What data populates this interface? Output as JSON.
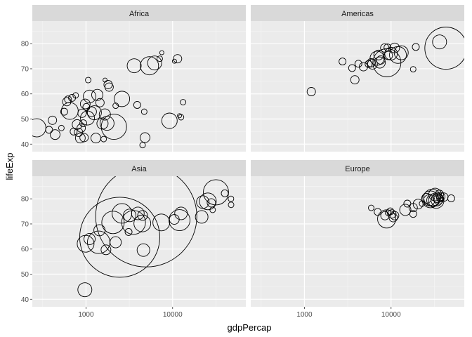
{
  "chart_data": {
    "type": "scatter",
    "subtype": "bubble-facets",
    "title": "",
    "xlabel": "gdpPercap",
    "ylabel": "lifeExp",
    "x_scale": "log10",
    "xlim": [
      240,
      70000
    ],
    "ylim": [
      37,
      89
    ],
    "x_ticks": [
      1000,
      10000
    ],
    "x_tick_labels": [
      "1000",
      "10000"
    ],
    "y_ticks": [
      40,
      50,
      60,
      70,
      80
    ],
    "y_tick_labels": [
      "40",
      "50",
      "60",
      "70",
      "80"
    ],
    "grid": true,
    "legend": "none",
    "colors": {
      "panel_background": "#ebebeb",
      "strip_background": "#d9d9d9",
      "grid_major": "#ffffff",
      "grid_minor": "#f5f5f5",
      "bubble_stroke": "#000000"
    },
    "panels": [
      {
        "name": "Africa",
        "points": [
          {
            "x": 270,
            "y": 46.5,
            "r": 13
          },
          {
            "x": 375,
            "y": 45.7,
            "r": 5
          },
          {
            "x": 410,
            "y": 49.5,
            "r": 6
          },
          {
            "x": 440,
            "y": 43.8,
            "r": 7
          },
          {
            "x": 520,
            "y": 46.4,
            "r": 4
          },
          {
            "x": 560,
            "y": 52.9,
            "r": 5
          },
          {
            "x": 600,
            "y": 56.9,
            "r": 6
          },
          {
            "x": 620,
            "y": 57.8,
            "r": 5
          },
          {
            "x": 650,
            "y": 53.2,
            "r": 12
          },
          {
            "x": 690,
            "y": 58.4,
            "r": 5
          },
          {
            "x": 720,
            "y": 45.0,
            "r": 5
          },
          {
            "x": 760,
            "y": 59.4,
            "r": 4
          },
          {
            "x": 790,
            "y": 47.8,
            "r": 7
          },
          {
            "x": 820,
            "y": 44.7,
            "r": 6
          },
          {
            "x": 860,
            "y": 42.4,
            "r": 7
          },
          {
            "x": 880,
            "y": 46.4,
            "r": 6
          },
          {
            "x": 900,
            "y": 52.3,
            "r": 6
          },
          {
            "x": 930,
            "y": 48.3,
            "r": 5
          },
          {
            "x": 950,
            "y": 42.6,
            "r": 6
          },
          {
            "x": 980,
            "y": 56.0,
            "r": 7
          },
          {
            "x": 1010,
            "y": 54.8,
            "r": 5
          },
          {
            "x": 1040,
            "y": 50.4,
            "r": 10
          },
          {
            "x": 1060,
            "y": 65.5,
            "r": 4
          },
          {
            "x": 1100,
            "y": 59.0,
            "r": 9
          },
          {
            "x": 1160,
            "y": 52.9,
            "r": 7
          },
          {
            "x": 1250,
            "y": 52.5,
            "r": 10
          },
          {
            "x": 1300,
            "y": 42.4,
            "r": 7
          },
          {
            "x": 1350,
            "y": 59.6,
            "r": 8
          },
          {
            "x": 1450,
            "y": 56.5,
            "r": 6
          },
          {
            "x": 1550,
            "y": 48.2,
            "r": 8
          },
          {
            "x": 1600,
            "y": 42.0,
            "r": 4
          },
          {
            "x": 1650,
            "y": 51.8,
            "r": 8
          },
          {
            "x": 1660,
            "y": 65.5,
            "r": 3
          },
          {
            "x": 1750,
            "y": 48.3,
            "r": 10
          },
          {
            "x": 1800,
            "y": 63.7,
            "r": 6
          },
          {
            "x": 1850,
            "y": 62.7,
            "r": 6
          },
          {
            "x": 2100,
            "y": 46.9,
            "r": 18
          },
          {
            "x": 2200,
            "y": 55.3,
            "r": 4
          },
          {
            "x": 2600,
            "y": 58.0,
            "r": 11
          },
          {
            "x": 3600,
            "y": 71.2,
            "r": 10
          },
          {
            "x": 3900,
            "y": 55.6,
            "r": 5
          },
          {
            "x": 4500,
            "y": 39.6,
            "r": 4
          },
          {
            "x": 4700,
            "y": 52.9,
            "r": 4
          },
          {
            "x": 4800,
            "y": 42.6,
            "r": 7
          },
          {
            "x": 5400,
            "y": 71.2,
            "r": 13
          },
          {
            "x": 6200,
            "y": 72.3,
            "r": 10
          },
          {
            "x": 7100,
            "y": 74.0,
            "r": 4
          },
          {
            "x": 7500,
            "y": 76.4,
            "r": 3
          },
          {
            "x": 9200,
            "y": 49.3,
            "r": 11
          },
          {
            "x": 10500,
            "y": 73.0,
            "r": 3
          },
          {
            "x": 11400,
            "y": 74.0,
            "r": 6
          },
          {
            "x": 12000,
            "y": 51.3,
            "r": 3
          },
          {
            "x": 12500,
            "y": 50.7,
            "r": 4
          },
          {
            "x": 13200,
            "y": 56.7,
            "r": 4
          }
        ]
      },
      {
        "name": "Americas",
        "points": [
          {
            "x": 1200,
            "y": 60.9,
            "r": 6
          },
          {
            "x": 2750,
            "y": 72.9,
            "r": 5
          },
          {
            "x": 3550,
            "y": 70.3,
            "r": 5
          },
          {
            "x": 3820,
            "y": 65.6,
            "r": 6
          },
          {
            "x": 4200,
            "y": 72.0,
            "r": 5
          },
          {
            "x": 4800,
            "y": 70.8,
            "r": 6
          },
          {
            "x": 5500,
            "y": 71.9,
            "r": 5
          },
          {
            "x": 5900,
            "y": 72.4,
            "r": 6
          },
          {
            "x": 6100,
            "y": 71.8,
            "r": 7
          },
          {
            "x": 6900,
            "y": 74.2,
            "r": 10
          },
          {
            "x": 7200,
            "y": 75.5,
            "r": 7
          },
          {
            "x": 7400,
            "y": 72.5,
            "r": 8
          },
          {
            "x": 7600,
            "y": 73.5,
            "r": 6
          },
          {
            "x": 8450,
            "y": 78.3,
            "r": 6
          },
          {
            "x": 8950,
            "y": 72.4,
            "r": 20
          },
          {
            "x": 9100,
            "y": 78.5,
            "r": 5
          },
          {
            "x": 9300,
            "y": 75.3,
            "r": 6
          },
          {
            "x": 10000,
            "y": 76.0,
            "r": 9
          },
          {
            "x": 11000,
            "y": 78.3,
            "r": 7
          },
          {
            "x": 12000,
            "y": 75.5,
            "r": 12
          },
          {
            "x": 13100,
            "y": 76.4,
            "r": 10
          },
          {
            "x": 18000,
            "y": 69.8,
            "r": 4
          },
          {
            "x": 19300,
            "y": 78.7,
            "r": 5
          },
          {
            "x": 36300,
            "y": 80.7,
            "r": 10
          },
          {
            "x": 42950,
            "y": 78.2,
            "r": 30
          }
        ]
      },
      {
        "name": "Asia",
        "points": [
          {
            "x": 970,
            "y": 43.8,
            "r": 10
          },
          {
            "x": 990,
            "y": 62.1,
            "r": 12
          },
          {
            "x": 1100,
            "y": 64.0,
            "r": 8
          },
          {
            "x": 1400,
            "y": 62.7,
            "r": 16
          },
          {
            "x": 1430,
            "y": 67.5,
            "r": 8
          },
          {
            "x": 1700,
            "y": 59.7,
            "r": 7
          },
          {
            "x": 2050,
            "y": 70.6,
            "r": 16
          },
          {
            "x": 2200,
            "y": 62.7,
            "r": 8
          },
          {
            "x": 2452,
            "y": 64.7,
            "r": 57
          },
          {
            "x": 2600,
            "y": 74.2,
            "r": 14
          },
          {
            "x": 3100,
            "y": 66.8,
            "r": 5
          },
          {
            "x": 3190,
            "y": 73.4,
            "r": 9
          },
          {
            "x": 3540,
            "y": 70.6,
            "r": 17
          },
          {
            "x": 3970,
            "y": 74.2,
            "r": 9
          },
          {
            "x": 4470,
            "y": 70.2,
            "r": 12
          },
          {
            "x": 4600,
            "y": 59.6,
            "r": 9
          },
          {
            "x": 4959,
            "y": 73.0,
            "r": 72
          },
          {
            "x": 4500,
            "y": 73.4,
            "r": 7
          },
          {
            "x": 7400,
            "y": 70.6,
            "r": 12
          },
          {
            "x": 10460,
            "y": 71.8,
            "r": 7
          },
          {
            "x": 12000,
            "y": 71.5,
            "r": 15
          },
          {
            "x": 12500,
            "y": 74.2,
            "r": 9
          },
          {
            "x": 21650,
            "y": 72.8,
            "r": 9
          },
          {
            "x": 22300,
            "y": 78.7,
            "r": 9
          },
          {
            "x": 25500,
            "y": 79.0,
            "r": 12
          },
          {
            "x": 28000,
            "y": 78.4,
            "r": 6
          },
          {
            "x": 29000,
            "y": 75.6,
            "r": 4
          },
          {
            "x": 31650,
            "y": 82.6,
            "r": 18
          },
          {
            "x": 40000,
            "y": 82.2,
            "r": 5
          },
          {
            "x": 47150,
            "y": 80.0,
            "r": 4
          },
          {
            "x": 47300,
            "y": 77.6,
            "r": 4
          }
        ]
      },
      {
        "name": "Europe",
        "points": [
          {
            "x": 5900,
            "y": 76.4,
            "r": 4
          },
          {
            "x": 7000,
            "y": 74.8,
            "r": 5
          },
          {
            "x": 8500,
            "y": 73.3,
            "r": 6
          },
          {
            "x": 8900,
            "y": 72.0,
            "r": 13
          },
          {
            "x": 9200,
            "y": 74.5,
            "r": 4
          },
          {
            "x": 9800,
            "y": 75.0,
            "r": 5
          },
          {
            "x": 10200,
            "y": 74.0,
            "r": 6
          },
          {
            "x": 10600,
            "y": 72.5,
            "r": 6
          },
          {
            "x": 11000,
            "y": 73.3,
            "r": 6
          },
          {
            "x": 14600,
            "y": 75.6,
            "r": 8
          },
          {
            "x": 15400,
            "y": 78.1,
            "r": 5
          },
          {
            "x": 18000,
            "y": 76.5,
            "r": 6
          },
          {
            "x": 18000,
            "y": 74.0,
            "r": 5
          },
          {
            "x": 20500,
            "y": 77.9,
            "r": 7
          },
          {
            "x": 22800,
            "y": 78.1,
            "r": 4
          },
          {
            "x": 25700,
            "y": 80.2,
            "r": 7
          },
          {
            "x": 27500,
            "y": 79.4,
            "r": 8
          },
          {
            "x": 28500,
            "y": 79.8,
            "r": 12
          },
          {
            "x": 29800,
            "y": 80.5,
            "r": 12
          },
          {
            "x": 30500,
            "y": 79.4,
            "r": 9
          },
          {
            "x": 32200,
            "y": 81.7,
            "r": 9
          },
          {
            "x": 33200,
            "y": 79.3,
            "r": 11
          },
          {
            "x": 33600,
            "y": 79.4,
            "r": 8
          },
          {
            "x": 34500,
            "y": 80.4,
            "r": 7
          },
          {
            "x": 35300,
            "y": 79.8,
            "r": 7
          },
          {
            "x": 36100,
            "y": 81.8,
            "r": 6
          },
          {
            "x": 36800,
            "y": 80.2,
            "r": 5
          },
          {
            "x": 37500,
            "y": 80.9,
            "r": 6
          },
          {
            "x": 40700,
            "y": 80.7,
            "r": 6
          },
          {
            "x": 49400,
            "y": 80.2,
            "r": 5
          }
        ]
      }
    ]
  }
}
